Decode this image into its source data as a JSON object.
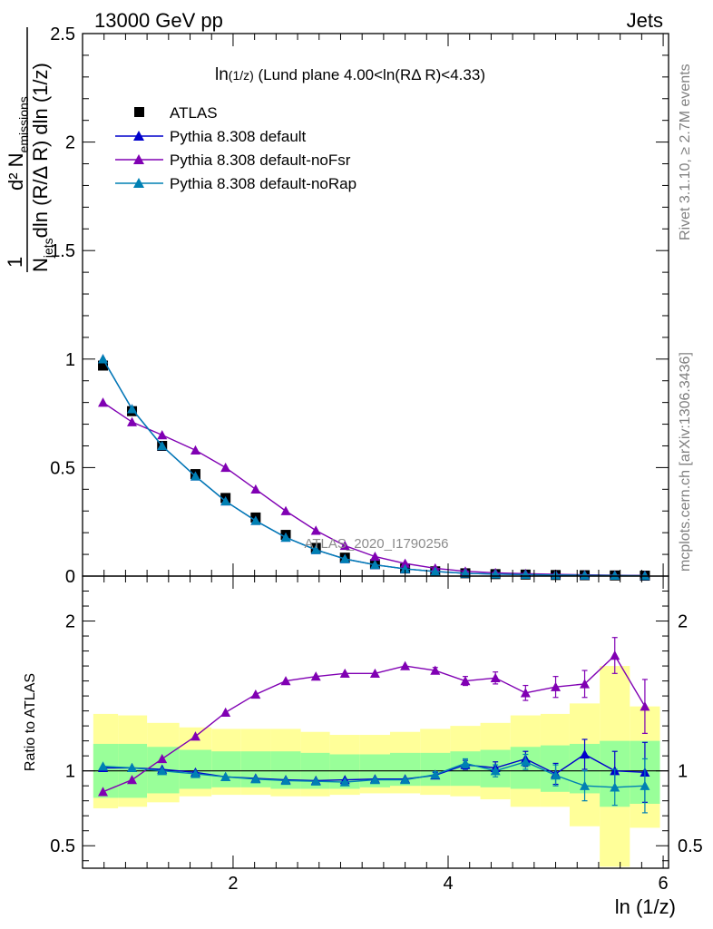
{
  "header": {
    "left": "13000 GeV pp",
    "right": "Jets"
  },
  "side_labels": {
    "rivet": "Rivet 3.1.10, ≥ 2.7M events",
    "mcplots": "mcplots.cern.ch [arXiv:1306.3436]"
  },
  "watermark": "ATLAS_2020_I1790256",
  "colors": {
    "atlas": "#000000",
    "default": "#0000cc",
    "noFsr": "#8000b3",
    "noRap": "#0080b3",
    "band_outer": "#ffff99",
    "band_inner": "#99ff99"
  },
  "chart_data": [
    {
      "type": "line",
      "title": {
        "main": "ln",
        "sub": "(1/z)",
        "rest": " (Lund plane 4.00<ln(RΔ R)<4.33)"
      },
      "ylabel": {
        "pre": "1",
        "N_jets": "N",
        "jets_sub": "jets",
        "dln": "dln (R/Δ R) dln (1/z)",
        "d2": "d² N",
        "em_sub": "emissions"
      },
      "xlim": [
        0.6,
        6.05
      ],
      "ylim": [
        0,
        2.5
      ],
      "yticks": [
        {
          "v": 0,
          "label": "0"
        },
        {
          "v": 0.5,
          "label": "0.5"
        },
        {
          "v": 1,
          "label": "1"
        },
        {
          "v": 1.5,
          "label": "1.5"
        },
        {
          "v": 2,
          "label": "2"
        },
        {
          "v": 2.5,
          "label": "2.5"
        }
      ],
      "x": [
        0.79,
        1.06,
        1.34,
        1.65,
        1.93,
        2.21,
        2.49,
        2.77,
        3.04,
        3.32,
        3.6,
        3.88,
        4.16,
        4.44,
        4.72,
        5.0,
        5.27,
        5.55,
        5.83
      ],
      "series": [
        {
          "name": "ATLAS",
          "marker": "square",
          "color_key": "atlas",
          "values": [
            0.97,
            0.76,
            0.6,
            0.47,
            0.36,
            0.27,
            0.19,
            0.13,
            0.085,
            0.055,
            0.035,
            0.022,
            0.013,
            0.009,
            0.007,
            0.005,
            0.004,
            0.003,
            0.002
          ]
        },
        {
          "name": "Pythia 8.308 default",
          "marker": "triangle",
          "color_key": "default",
          "values": [
            1.0,
            0.77,
            0.6,
            0.46,
            0.345,
            0.255,
            0.178,
            0.121,
            0.079,
            0.052,
            0.033,
            0.021,
            0.013,
            0.009,
            0.007,
            0.005,
            0.004,
            0.003,
            0.002
          ]
        },
        {
          "name": "Pythia 8.308 default-noFsr",
          "marker": "triangle",
          "color_key": "noFsr",
          "values": [
            0.8,
            0.71,
            0.65,
            0.58,
            0.5,
            0.4,
            0.3,
            0.21,
            0.14,
            0.09,
            0.058,
            0.036,
            0.022,
            0.015,
            0.011,
            0.008,
            0.006,
            0.004,
            0.003
          ]
        },
        {
          "name": "Pythia 8.308 default-noRap",
          "marker": "triangle",
          "color_key": "noRap",
          "values": [
            1.0,
            0.77,
            0.6,
            0.46,
            0.345,
            0.255,
            0.178,
            0.121,
            0.079,
            0.052,
            0.033,
            0.021,
            0.013,
            0.009,
            0.007,
            0.005,
            0.004,
            0.003,
            0.002
          ]
        }
      ],
      "legend": "top-left"
    },
    {
      "type": "line",
      "ylabel": "Ratio to ATLAS",
      "xlabel": "ln (1/z)",
      "xlim": [
        0.6,
        6.05
      ],
      "ylim": [
        0.35,
        2.3
      ],
      "xticks": [
        {
          "v": 2,
          "label": "2"
        },
        {
          "v": 4,
          "label": "4"
        },
        {
          "v": 6,
          "label": "6"
        }
      ],
      "yticks": [
        {
          "v": 0.5,
          "label": "0.5"
        },
        {
          "v": 1,
          "label": "1"
        },
        {
          "v": 2,
          "label": "2"
        }
      ],
      "bins": [
        [
          0.7,
          0.93,
          0.82,
          1.18,
          0.75,
          1.38
        ],
        [
          0.93,
          1.2,
          0.82,
          1.18,
          0.76,
          1.37
        ],
        [
          1.2,
          1.5,
          0.85,
          1.16,
          0.79,
          1.32
        ],
        [
          1.5,
          1.8,
          0.88,
          1.14,
          0.83,
          1.29
        ],
        [
          1.8,
          2.07,
          0.89,
          1.13,
          0.84,
          1.28
        ],
        [
          2.07,
          2.35,
          0.89,
          1.13,
          0.84,
          1.28
        ],
        [
          2.35,
          2.63,
          0.88,
          1.13,
          0.83,
          1.28
        ],
        [
          2.63,
          2.9,
          0.88,
          1.12,
          0.83,
          1.26
        ],
        [
          2.9,
          3.18,
          0.88,
          1.11,
          0.84,
          1.24
        ],
        [
          3.18,
          3.46,
          0.89,
          1.11,
          0.85,
          1.24
        ],
        [
          3.46,
          3.74,
          0.9,
          1.12,
          0.85,
          1.26
        ],
        [
          3.74,
          4.02,
          0.9,
          1.12,
          0.84,
          1.28
        ],
        [
          4.02,
          4.3,
          0.9,
          1.13,
          0.83,
          1.3
        ],
        [
          4.3,
          4.58,
          0.89,
          1.14,
          0.81,
          1.32
        ],
        [
          4.58,
          4.86,
          0.88,
          1.16,
          0.76,
          1.37
        ],
        [
          4.86,
          5.13,
          0.86,
          1.17,
          0.76,
          1.38
        ],
        [
          5.13,
          5.41,
          0.85,
          1.18,
          0.63,
          1.45
        ],
        [
          5.41,
          5.69,
          0.76,
          1.2,
          0.36,
          1.7
        ],
        [
          5.69,
          5.97,
          0.78,
          1.2,
          0.62,
          1.43
        ]
      ],
      "reference": 1,
      "x": [
        0.79,
        1.06,
        1.34,
        1.65,
        1.93,
        2.21,
        2.49,
        2.77,
        3.04,
        3.32,
        3.6,
        3.88,
        4.16,
        4.44,
        4.72,
        5.0,
        5.27,
        5.55,
        5.83
      ],
      "series": [
        {
          "name": "Pythia 8.308 default",
          "color_key": "default",
          "values": [
            1.02,
            1.02,
            1.01,
            0.99,
            0.96,
            0.95,
            0.94,
            0.935,
            0.94,
            0.945,
            0.945,
            0.97,
            1.04,
            1.02,
            1.08,
            0.98,
            1.11,
            1.0,
            0.99
          ],
          "errors": [
            0.01,
            0.01,
            0.01,
            0.01,
            0.01,
            0.01,
            0.01,
            0.01,
            0.01,
            0.01,
            0.015,
            0.02,
            0.03,
            0.04,
            0.05,
            0.07,
            0.1,
            0.13,
            0.2
          ]
        },
        {
          "name": "Pythia 8.308 default-noFsr",
          "color_key": "noFsr",
          "values": [
            0.86,
            0.94,
            1.08,
            1.23,
            1.39,
            1.51,
            1.6,
            1.63,
            1.65,
            1.65,
            1.7,
            1.67,
            1.6,
            1.62,
            1.52,
            1.56,
            1.58,
            1.77,
            1.43
          ],
          "errors": [
            0.01,
            0.01,
            0.01,
            0.01,
            0.01,
            0.01,
            0.01,
            0.01,
            0.01,
            0.01,
            0.015,
            0.02,
            0.03,
            0.04,
            0.05,
            0.07,
            0.09,
            0.12,
            0.18
          ]
        },
        {
          "name": "Pythia 8.308 default-noRap",
          "color_key": "noRap",
          "values": [
            1.03,
            1.02,
            1.0,
            0.98,
            0.96,
            0.945,
            0.935,
            0.93,
            0.925,
            0.94,
            0.94,
            0.975,
            1.05,
            1.0,
            1.06,
            0.97,
            0.9,
            0.89,
            0.9
          ],
          "errors": [
            0.01,
            0.01,
            0.01,
            0.01,
            0.01,
            0.01,
            0.01,
            0.01,
            0.01,
            0.01,
            0.015,
            0.02,
            0.03,
            0.04,
            0.05,
            0.07,
            0.1,
            0.12,
            0.18
          ]
        }
      ]
    }
  ]
}
